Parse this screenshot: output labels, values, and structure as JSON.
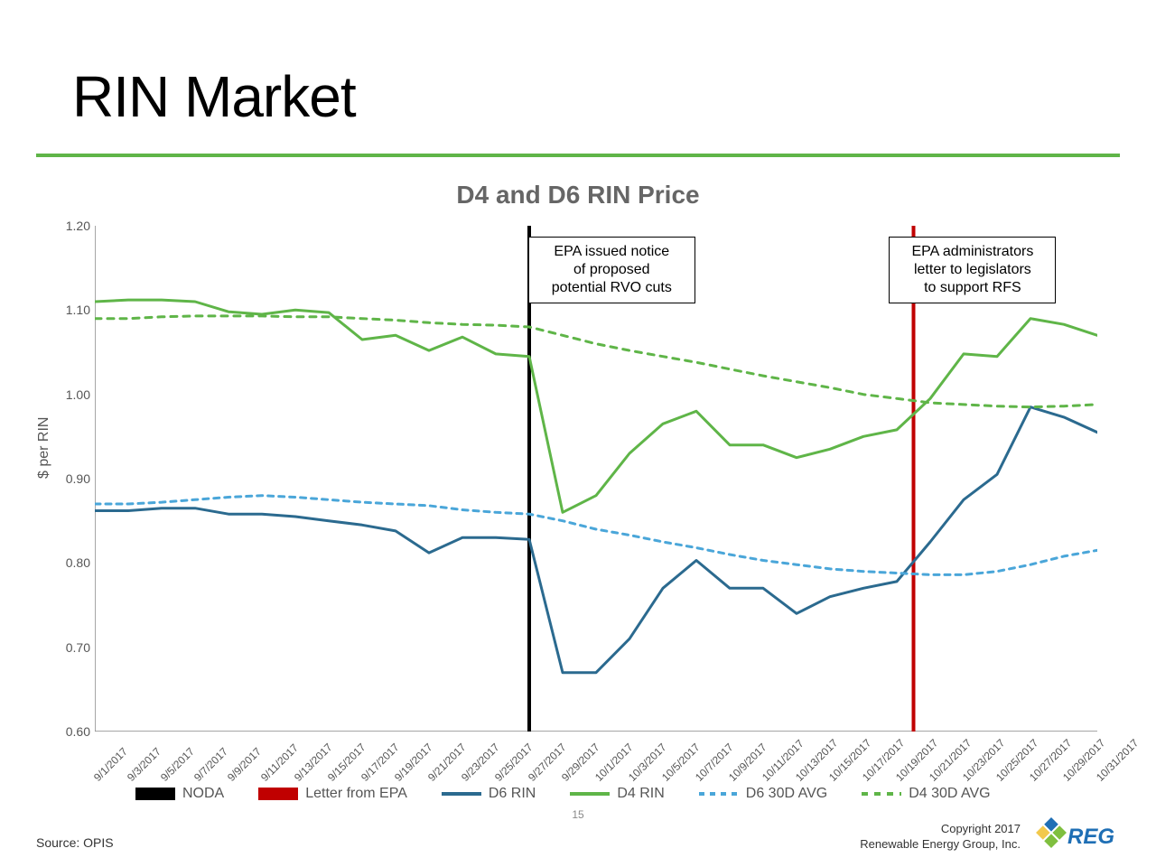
{
  "title": "RIN Market",
  "chart": {
    "subtitle": "D4 and D6 RIN Price",
    "ylabel": "$ per RIN",
    "ylim": [
      0.6,
      1.2
    ],
    "ytick_step": 0.1,
    "x_labels": [
      "9/1/2017",
      "9/3/2017",
      "9/5/2017",
      "9/7/2017",
      "9/9/2017",
      "9/11/2017",
      "9/13/2017",
      "9/15/2017",
      "9/17/2017",
      "9/19/2017",
      "9/21/2017",
      "9/23/2017",
      "9/25/2017",
      "9/27/2017",
      "9/29/2017",
      "10/1/2017",
      "10/3/2017",
      "10/5/2017",
      "10/7/2017",
      "10/9/2017",
      "10/11/2017",
      "10/13/2017",
      "10/15/2017",
      "10/17/2017",
      "10/19/2017",
      "10/21/2017",
      "10/23/2017",
      "10/25/2017",
      "10/27/2017",
      "10/29/2017",
      "10/31/2017"
    ],
    "vlines": [
      {
        "x_index": 13,
        "color": "#000000",
        "width": 4,
        "label": "NODA"
      },
      {
        "x_index": 24.5,
        "color": "#c00000",
        "width": 4,
        "label": "Letter from EPA"
      }
    ],
    "annotations": [
      {
        "x_index": 15.4,
        "y": 1.155,
        "text_lines": [
          "EPA issued notice",
          "of proposed",
          "potential RVO cuts"
        ]
      },
      {
        "x_index": 26.2,
        "y": 1.155,
        "text_lines": [
          "EPA administrators",
          "letter to legislators",
          "to support RFS"
        ]
      }
    ],
    "series": [
      {
        "name": "D6 RIN",
        "color": "#2b6a8f",
        "dash": "none",
        "width": 3,
        "y": [
          0.862,
          0.862,
          0.865,
          0.865,
          0.858,
          0.858,
          0.855,
          0.85,
          0.845,
          0.838,
          0.812,
          0.83,
          0.83,
          0.828,
          0.67,
          0.67,
          0.71,
          0.77,
          0.803,
          0.77,
          0.77,
          0.74,
          0.76,
          0.77,
          0.778,
          0.825,
          0.875,
          0.905,
          0.985,
          0.973,
          0.955
        ]
      },
      {
        "name": "D4 RIN",
        "color": "#5fb548",
        "dash": "none",
        "width": 3,
        "y": [
          1.11,
          1.112,
          1.112,
          1.11,
          1.098,
          1.095,
          1.1,
          1.097,
          1.065,
          1.07,
          1.052,
          1.068,
          1.048,
          1.045,
          0.86,
          0.88,
          0.93,
          0.965,
          0.98,
          0.94,
          0.94,
          0.925,
          0.935,
          0.95,
          0.958,
          0.995,
          1.048,
          1.045,
          1.09,
          1.083,
          1.07
        ]
      },
      {
        "name": "D6 30D AVG",
        "color": "#4aa6d9",
        "dash": "6,6",
        "width": 3,
        "y": [
          0.87,
          0.87,
          0.872,
          0.875,
          0.878,
          0.88,
          0.878,
          0.875,
          0.872,
          0.87,
          0.868,
          0.863,
          0.86,
          0.858,
          0.85,
          0.84,
          0.833,
          0.825,
          0.818,
          0.81,
          0.803,
          0.798,
          0.793,
          0.79,
          0.788,
          0.786,
          0.786,
          0.79,
          0.798,
          0.808,
          0.815
        ]
      },
      {
        "name": "D4 30D AVG",
        "color": "#5fb548",
        "dash": "7,7",
        "width": 3,
        "y": [
          1.09,
          1.09,
          1.092,
          1.093,
          1.093,
          1.093,
          1.092,
          1.092,
          1.09,
          1.088,
          1.085,
          1.083,
          1.082,
          1.08,
          1.07,
          1.06,
          1.052,
          1.045,
          1.038,
          1.03,
          1.022,
          1.015,
          1.008,
          1.0,
          0.995,
          0.99,
          0.988,
          0.986,
          0.985,
          0.986,
          0.988
        ]
      }
    ],
    "axis_color": "#888888",
    "line_chart_bg": "#ffffff"
  },
  "page_number": "15",
  "source": "Source: OPIS",
  "copyright_lines": [
    "Copyright 2017",
    "Renewable Energy Group, Inc."
  ],
  "logo": {
    "text": "REG",
    "diamond_colors": [
      "#1f6fb5",
      "#7fbf3f",
      "#f2c94c"
    ]
  }
}
